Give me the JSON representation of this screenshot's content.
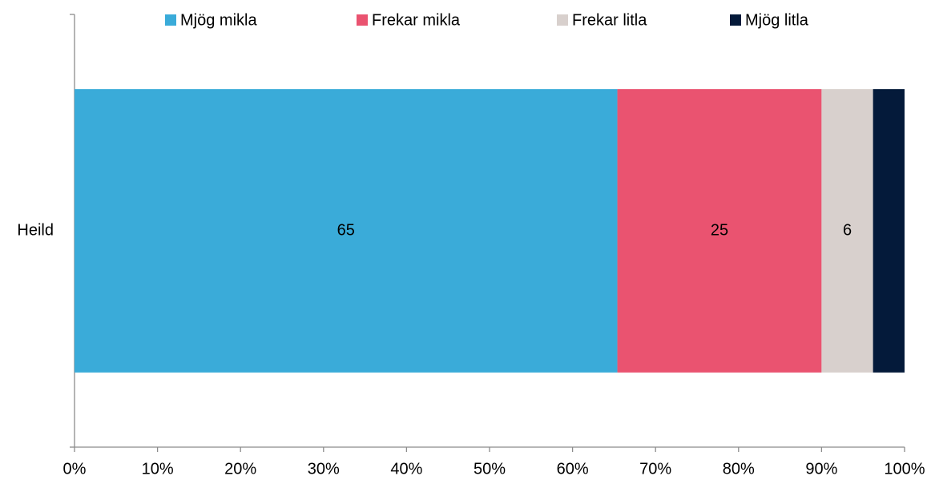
{
  "chart_data": {
    "type": "bar",
    "orientation": "horizontal",
    "stacked": true,
    "categories": [
      "Heild"
    ],
    "series": [
      {
        "name": "Mjög mikla",
        "color": "#3aabd9",
        "values": [
          65.4
        ],
        "value_labels": [
          "65"
        ]
      },
      {
        "name": "Frekar mikla",
        "color": "#ea5370",
        "values": [
          24.6
        ],
        "value_labels": [
          "25"
        ]
      },
      {
        "name": "Frekar litla",
        "color": "#d8d0cd",
        "values": [
          6.2
        ],
        "value_labels": [
          "6"
        ]
      },
      {
        "name": "Mjög litla",
        "color": "#041a3a",
        "values": [
          3.8
        ]
      }
    ],
    "xlim": [
      0,
      100
    ],
    "xticks": [
      {
        "value": 0,
        "label": "0%"
      },
      {
        "value": 10,
        "label": "10%"
      },
      {
        "value": 20,
        "label": "20%"
      },
      {
        "value": 30,
        "label": "30%"
      },
      {
        "value": 40,
        "label": "40%"
      },
      {
        "value": 50,
        "label": "50%"
      },
      {
        "value": 60,
        "label": "60%"
      },
      {
        "value": 70,
        "label": "70%"
      },
      {
        "value": 80,
        "label": "80%"
      },
      {
        "value": 90,
        "label": "90%"
      },
      {
        "value": 100,
        "label": "100%"
      }
    ],
    "legend": "top"
  }
}
